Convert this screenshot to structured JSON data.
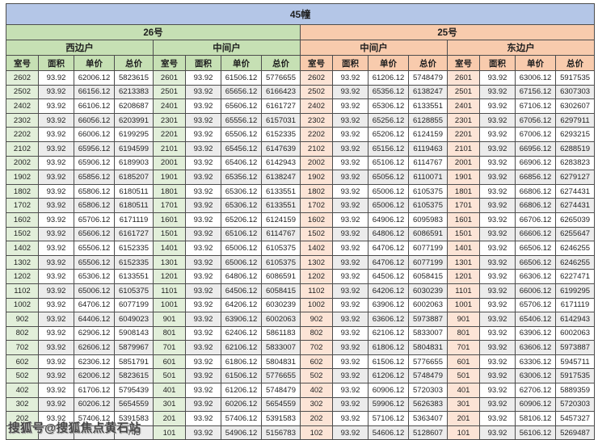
{
  "title": "45幢",
  "buildings": [
    {
      "name": "26号",
      "units": [
        "西边户",
        "中间户"
      ]
    },
    {
      "name": "25号",
      "units": [
        "中间户",
        "东边户"
      ]
    }
  ],
  "column_headers": [
    "室号",
    "面积",
    "单价",
    "总价"
  ],
  "colors": {
    "title_band": "#b4c6e7",
    "building_26_band": "#c6e0b4",
    "building_25_band": "#f8cbad",
    "room_col_26": "#e2efda",
    "room_col_25": "#fce4d6",
    "stripe": "#ececec",
    "border": "#4d4d4d"
  },
  "watermark": {
    "text": "搜狐号@搜狐焦点黄石站",
    "visible_fragment_in_last_row": "743"
  },
  "rows": [
    [
      "2602",
      "93.92",
      "62006.12",
      "5823615",
      "2601",
      "93.92",
      "61506.12",
      "5776655",
      "2602",
      "93.92",
      "61206.12",
      "5748479",
      "2601",
      "93.92",
      "63006.12",
      "5917535"
    ],
    [
      "2502",
      "93.92",
      "66156.12",
      "6213383",
      "2501",
      "93.92",
      "65656.12",
      "6166423",
      "2502",
      "93.92",
      "65356.12",
      "6138247",
      "2501",
      "93.92",
      "67156.12",
      "6307303"
    ],
    [
      "2402",
      "93.92",
      "66106.12",
      "6208687",
      "2401",
      "93.92",
      "65606.12",
      "6161727",
      "2402",
      "93.92",
      "65306.12",
      "6133551",
      "2401",
      "93.92",
      "67106.12",
      "6302607"
    ],
    [
      "2302",
      "93.92",
      "66056.12",
      "6203991",
      "2301",
      "93.92",
      "65556.12",
      "6157031",
      "2302",
      "93.92",
      "65256.12",
      "6128855",
      "2301",
      "93.92",
      "67056.12",
      "6297911"
    ],
    [
      "2202",
      "93.92",
      "66006.12",
      "6199295",
      "2201",
      "93.92",
      "65506.12",
      "6152335",
      "2202",
      "93.92",
      "65206.12",
      "6124159",
      "2201",
      "93.92",
      "67006.12",
      "6293215"
    ],
    [
      "2102",
      "93.92",
      "65956.12",
      "6194599",
      "2101",
      "93.92",
      "65456.12",
      "6147639",
      "2102",
      "93.92",
      "65156.12",
      "6119463",
      "2101",
      "93.92",
      "66956.12",
      "6288519"
    ],
    [
      "2002",
      "93.92",
      "65906.12",
      "6189903",
      "2001",
      "93.92",
      "65406.12",
      "6142943",
      "2002",
      "93.92",
      "65106.12",
      "6114767",
      "2001",
      "93.92",
      "66906.12",
      "6283823"
    ],
    [
      "1902",
      "93.92",
      "65856.12",
      "6185207",
      "1901",
      "93.92",
      "65356.12",
      "6138247",
      "1902",
      "93.92",
      "65056.12",
      "6110071",
      "1901",
      "93.92",
      "66856.12",
      "6279127"
    ],
    [
      "1802",
      "93.92",
      "65806.12",
      "6180511",
      "1801",
      "93.92",
      "65306.12",
      "6133551",
      "1802",
      "93.92",
      "65006.12",
      "6105375",
      "1801",
      "93.92",
      "66806.12",
      "6274431"
    ],
    [
      "1702",
      "93.92",
      "65806.12",
      "6180511",
      "1701",
      "93.92",
      "65306.12",
      "6133551",
      "1702",
      "93.92",
      "65006.12",
      "6105375",
      "1701",
      "93.92",
      "66806.12",
      "6274431"
    ],
    [
      "1602",
      "93.92",
      "65706.12",
      "6171119",
      "1601",
      "93.92",
      "65206.12",
      "6124159",
      "1602",
      "93.92",
      "64906.12",
      "6095983",
      "1601",
      "93.92",
      "66706.12",
      "6265039"
    ],
    [
      "1502",
      "93.92",
      "65606.12",
      "6161727",
      "1501",
      "93.92",
      "65106.12",
      "6114767",
      "1502",
      "93.92",
      "64806.12",
      "6086591",
      "1501",
      "93.92",
      "66606.12",
      "6255647"
    ],
    [
      "1402",
      "93.92",
      "65506.12",
      "6152335",
      "1401",
      "93.92",
      "65006.12",
      "6105375",
      "1402",
      "93.92",
      "64706.12",
      "6077199",
      "1401",
      "93.92",
      "66506.12",
      "6246255"
    ],
    [
      "1302",
      "93.92",
      "65506.12",
      "6152335",
      "1301",
      "93.92",
      "65006.12",
      "6105375",
      "1302",
      "93.92",
      "64706.12",
      "6077199",
      "1301",
      "93.92",
      "66506.12",
      "6246255"
    ],
    [
      "1202",
      "93.92",
      "65306.12",
      "6133551",
      "1201",
      "93.92",
      "64806.12",
      "6086591",
      "1202",
      "93.92",
      "64506.12",
      "6058415",
      "1201",
      "93.92",
      "66306.12",
      "6227471"
    ],
    [
      "1102",
      "93.92",
      "65006.12",
      "6105375",
      "1101",
      "93.92",
      "64506.12",
      "6058415",
      "1102",
      "93.92",
      "64206.12",
      "6030239",
      "1101",
      "93.92",
      "66006.12",
      "6199295"
    ],
    [
      "1002",
      "93.92",
      "64706.12",
      "6077199",
      "1001",
      "93.92",
      "64206.12",
      "6030239",
      "1002",
      "93.92",
      "63906.12",
      "6002063",
      "1001",
      "93.92",
      "65706.12",
      "6171119"
    ],
    [
      "902",
      "93.92",
      "64406.12",
      "6049023",
      "901",
      "93.92",
      "63906.12",
      "6002063",
      "902",
      "93.92",
      "63606.12",
      "5973887",
      "901",
      "93.92",
      "65406.12",
      "6142943"
    ],
    [
      "802",
      "93.92",
      "62906.12",
      "5908143",
      "801",
      "93.92",
      "62406.12",
      "5861183",
      "802",
      "93.92",
      "62106.12",
      "5833007",
      "801",
      "93.92",
      "63906.12",
      "6002063"
    ],
    [
      "702",
      "93.92",
      "62606.12",
      "5879967",
      "701",
      "93.92",
      "62106.12",
      "5833007",
      "702",
      "93.92",
      "61806.12",
      "5804831",
      "701",
      "93.92",
      "63606.12",
      "5973887"
    ],
    [
      "602",
      "93.92",
      "62306.12",
      "5851791",
      "601",
      "93.92",
      "61806.12",
      "5804831",
      "602",
      "93.92",
      "61506.12",
      "5776655",
      "601",
      "93.92",
      "63306.12",
      "5945711"
    ],
    [
      "502",
      "93.92",
      "62006.12",
      "5823615",
      "501",
      "93.92",
      "61506.12",
      "5776655",
      "502",
      "93.92",
      "61206.12",
      "5748479",
      "501",
      "93.92",
      "63006.12",
      "5917535"
    ],
    [
      "402",
      "93.92",
      "61706.12",
      "5795439",
      "401",
      "93.92",
      "61206.12",
      "5748479",
      "402",
      "93.92",
      "60906.12",
      "5720303",
      "401",
      "93.92",
      "62706.12",
      "5889359"
    ],
    [
      "302",
      "93.92",
      "60206.12",
      "5654559",
      "301",
      "93.92",
      "60206.12",
      "5654559",
      "302",
      "93.92",
      "59906.12",
      "5626383",
      "301",
      "93.92",
      "60906.12",
      "5720303"
    ],
    [
      "202",
      "93.92",
      "57406.12",
      "5391583",
      "201",
      "93.92",
      "57406.12",
      "5391583",
      "202",
      "93.92",
      "57106.12",
      "5363407",
      "201",
      "93.92",
      "58106.12",
      "5457327"
    ],
    [
      "",
      "",
      "",
      "743",
      "101",
      "93.92",
      "54906.12",
      "5156783",
      "102",
      "93.92",
      "54606.12",
      "5128607",
      "101",
      "93.92",
      "56106.12",
      "5269487"
    ]
  ]
}
